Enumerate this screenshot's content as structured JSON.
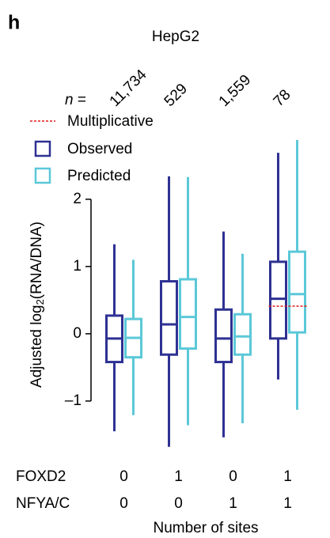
{
  "panel_label": "h",
  "chart_data": {
    "type": "box",
    "title": "HepG2",
    "n_label": {
      "symbol": "n",
      "equals": "="
    },
    "counts": [
      {
        "value": 11734,
        "label": "11,734"
      },
      {
        "value": 529,
        "label": "529"
      },
      {
        "value": 1559,
        "label": "1,559"
      },
      {
        "value": 78,
        "label": "78"
      }
    ],
    "y_label": {
      "prefix": "Adjusted log",
      "sub": "2",
      "suffix": "(RNA/DNA)"
    },
    "ylim": [
      -1.86,
      3.08
    ],
    "yticks": [
      2,
      1,
      0,
      {
        "value": -1,
        "label": "–1"
      }
    ],
    "series": [
      {
        "name": "Observed",
        "color": "#2e3192",
        "whisker_low": [
          -1.45,
          -1.68,
          -1.54,
          -0.68
        ],
        "q1": [
          -0.42,
          -0.31,
          -0.42,
          -0.07
        ],
        "median": [
          -0.07,
          0.14,
          -0.07,
          0.52
        ],
        "q3": [
          0.27,
          0.78,
          0.36,
          1.07
        ],
        "whisker_high": [
          1.33,
          2.34,
          1.52,
          2.69
        ]
      },
      {
        "name": "Predicted",
        "color": "#5bc8d8",
        "whisker_low": [
          -1.21,
          -1.36,
          -1.33,
          -1.13
        ],
        "q1": [
          -0.35,
          -0.22,
          -0.31,
          0.02
        ],
        "median": [
          -0.06,
          0.25,
          -0.04,
          0.59
        ],
        "q3": [
          0.22,
          0.81,
          0.29,
          1.22
        ],
        "whisker_high": [
          1.1,
          2.33,
          1.19,
          2.88
        ]
      }
    ],
    "reference": {
      "name": "Multiplicative",
      "color": "#e31a1c",
      "values": [
        null,
        null,
        null,
        0.41
      ]
    },
    "sites": [
      {
        "name": "FOXD2",
        "values": [
          0,
          1,
          0,
          1
        ]
      },
      {
        "name": "NFYA/C",
        "values": [
          0,
          0,
          1,
          1
        ]
      }
    ],
    "x_label": "Number of sites"
  }
}
